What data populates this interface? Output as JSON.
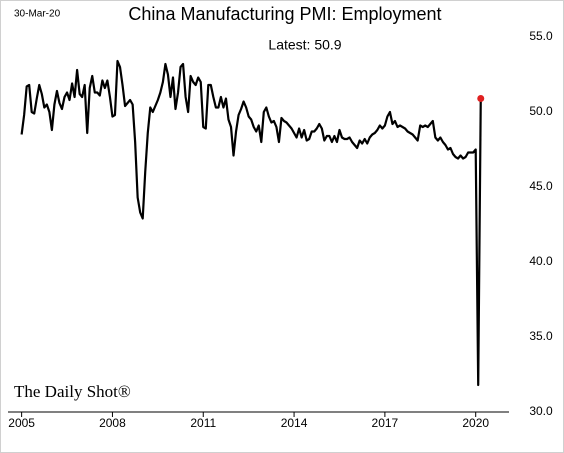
{
  "chart_data": {
    "type": "line",
    "title": "China Manufacturing PMI: Employment",
    "date_label": "30-Mar-20",
    "annotation": "Latest:  50.9",
    "source": "The Daily Shot®",
    "x": [
      2005,
      2005.083,
      2005.167,
      2005.25,
      2005.333,
      2005.417,
      2005.5,
      2005.583,
      2005.667,
      2005.75,
      2005.833,
      2005.917,
      2006,
      2006.083,
      2006.167,
      2006.25,
      2006.333,
      2006.417,
      2006.5,
      2006.583,
      2006.667,
      2006.75,
      2006.833,
      2006.917,
      2007,
      2007.083,
      2007.167,
      2007.25,
      2007.333,
      2007.417,
      2007.5,
      2007.583,
      2007.667,
      2007.75,
      2007.833,
      2007.917,
      2008,
      2008.083,
      2008.167,
      2008.25,
      2008.333,
      2008.417,
      2008.5,
      2008.583,
      2008.667,
      2008.75,
      2008.833,
      2008.917,
      2009,
      2009.083,
      2009.167,
      2009.25,
      2009.333,
      2009.417,
      2009.5,
      2009.583,
      2009.667,
      2009.75,
      2009.833,
      2009.917,
      2010,
      2010.083,
      2010.167,
      2010.25,
      2010.333,
      2010.417,
      2010.5,
      2010.583,
      2010.667,
      2010.75,
      2010.833,
      2010.917,
      2011,
      2011.083,
      2011.167,
      2011.25,
      2011.333,
      2011.417,
      2011.5,
      2011.583,
      2011.667,
      2011.75,
      2011.833,
      2011.917,
      2012,
      2012.083,
      2012.167,
      2012.25,
      2012.333,
      2012.417,
      2012.5,
      2012.583,
      2012.667,
      2012.75,
      2012.833,
      2012.917,
      2013,
      2013.083,
      2013.167,
      2013.25,
      2013.333,
      2013.417,
      2013.5,
      2013.583,
      2013.667,
      2013.75,
      2013.833,
      2013.917,
      2014,
      2014.083,
      2014.167,
      2014.25,
      2014.333,
      2014.417,
      2014.5,
      2014.583,
      2014.667,
      2014.75,
      2014.833,
      2014.917,
      2015,
      2015.083,
      2015.167,
      2015.25,
      2015.333,
      2015.417,
      2015.5,
      2015.583,
      2015.667,
      2015.75,
      2015.833,
      2015.917,
      2016,
      2016.083,
      2016.167,
      2016.25,
      2016.333,
      2016.417,
      2016.5,
      2016.583,
      2016.667,
      2016.75,
      2016.833,
      2016.917,
      2017,
      2017.083,
      2017.167,
      2017.25,
      2017.333,
      2017.417,
      2017.5,
      2017.583,
      2017.667,
      2017.75,
      2017.833,
      2017.917,
      2018,
      2018.083,
      2018.167,
      2018.25,
      2018.333,
      2018.417,
      2018.5,
      2018.583,
      2018.667,
      2018.75,
      2018.833,
      2018.917,
      2019,
      2019.083,
      2019.167,
      2019.25,
      2019.333,
      2019.417,
      2019.5,
      2019.583,
      2019.667,
      2019.75,
      2019.833,
      2019.917,
      2020,
      2020.083,
      2020.167
    ],
    "series": [
      {
        "name": "Employment",
        "color": "#000000",
        "highlight_color": "#e02020",
        "values": [
          48.5,
          49.8,
          51.7,
          51.8,
          50.0,
          49.9,
          50.9,
          51.8,
          51.2,
          50.3,
          50.5,
          50.0,
          48.8,
          50.5,
          51.4,
          50.6,
          50.2,
          51.0,
          51.3,
          50.8,
          51.9,
          51.0,
          52.8,
          51.2,
          51.0,
          51.8,
          48.6,
          51.6,
          52.4,
          51.3,
          51.3,
          51.1,
          52.1,
          51.6,
          52.1,
          51.0,
          49.7,
          49.8,
          53.4,
          53.0,
          51.8,
          50.4,
          50.6,
          50.8,
          50.5,
          48.0,
          44.3,
          43.3,
          42.9,
          46.0,
          48.6,
          50.3,
          50.0,
          50.4,
          50.8,
          51.3,
          52.0,
          53.2,
          52.5,
          51.0,
          52.3,
          50.2,
          51.3,
          53.0,
          53.2,
          51.0,
          50.0,
          52.4,
          52.0,
          51.8,
          52.3,
          52.0,
          49.0,
          48.9,
          51.8,
          51.8,
          51.0,
          50.3,
          50.3,
          51.0,
          50.3,
          50.9,
          49.5,
          49.0,
          47.1,
          48.7,
          49.8,
          50.2,
          50.7,
          50.3,
          49.7,
          49.5,
          49.0,
          48.7,
          49.1,
          48.0,
          50.0,
          50.3,
          49.7,
          49.3,
          49.4,
          49.0,
          48.0,
          49.6,
          49.4,
          49.3,
          49.1,
          48.9,
          48.6,
          48.3,
          48.9,
          48.3,
          48.8,
          48.1,
          48.2,
          48.7,
          48.7,
          48.9,
          49.2,
          48.9,
          48.1,
          48.4,
          48.4,
          48.0,
          48.4,
          48.0,
          48.8,
          48.3,
          48.2,
          48.2,
          48.3,
          48.0,
          47.8,
          47.6,
          48.1,
          47.9,
          48.2,
          47.9,
          48.3,
          48.5,
          48.6,
          48.8,
          49.1,
          48.9,
          49.1,
          49.7,
          50.0,
          49.2,
          49.4,
          49.0,
          49.1,
          49.0,
          48.9,
          48.7,
          48.6,
          48.5,
          48.3,
          48.1,
          49.1,
          49.0,
          49.1,
          49.0,
          49.2,
          49.4,
          48.3,
          48.1,
          48.3,
          48.0,
          47.8,
          47.5,
          47.6,
          47.2,
          47.0,
          46.9,
          47.1,
          46.9,
          47.0,
          47.3,
          47.3,
          47.3,
          47.5,
          31.8,
          50.9
        ]
      }
    ],
    "xlim": [
      2004.55,
      2021.1
    ],
    "xticks": [
      2005,
      2008,
      2011,
      2014,
      2017,
      2020
    ],
    "ylim": [
      30,
      56.8
    ],
    "yticks": [
      {
        "value": 30,
        "label": "30.0"
      },
      {
        "value": 35,
        "label": "35.0"
      },
      {
        "value": 40,
        "label": "40.0"
      },
      {
        "value": 45,
        "label": "45.0"
      },
      {
        "value": 50,
        "label": "50.0"
      },
      {
        "value": 55,
        "label": "55.0"
      }
    ],
    "y_axis_side": "right",
    "grid": false
  }
}
